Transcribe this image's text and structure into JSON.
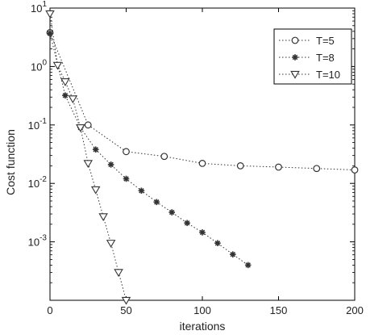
{
  "chart_data": {
    "type": "line",
    "xlabel": "iterations",
    "ylabel": "Cost function",
    "xlim": [
      0,
      200
    ],
    "ylim": [
      0.0001,
      10
    ],
    "yscale": "log",
    "grid": false,
    "legend_position": "top-right",
    "x_ticks": [
      0,
      50,
      100,
      150,
      200
    ],
    "y_ticks": [
      {
        "value": 10,
        "mantissa": "10",
        "exponent": "1"
      },
      {
        "value": 1,
        "mantissa": "10",
        "exponent": "0"
      },
      {
        "value": 0.1,
        "mantissa": "10",
        "exponent": "-1"
      },
      {
        "value": 0.01,
        "mantissa": "10",
        "exponent": "-2"
      },
      {
        "value": 0.001,
        "mantissa": "10",
        "exponent": "-3"
      }
    ],
    "series": [
      {
        "name": "T=5",
        "marker": "circle",
        "color": "#333333",
        "x": [
          0,
          25,
          50,
          75,
          100,
          125,
          150,
          175,
          200
        ],
        "y": [
          3.8,
          0.1,
          0.035,
          0.029,
          0.022,
          0.02,
          0.019,
          0.018,
          0.017
        ]
      },
      {
        "name": "T=8",
        "marker": "star",
        "color": "#333333",
        "x": [
          0,
          10,
          20,
          30,
          40,
          50,
          60,
          70,
          80,
          90,
          100,
          110,
          120,
          130
        ],
        "y": [
          3.7,
          0.32,
          0.09,
          0.038,
          0.021,
          0.012,
          0.0075,
          0.0048,
          0.0032,
          0.0021,
          0.00145,
          0.00095,
          0.00061,
          0.0004
        ]
      },
      {
        "name": "T=10",
        "marker": "triangle-down",
        "color": "#333333",
        "x": [
          0,
          5,
          10,
          15,
          20,
          25,
          30,
          35,
          40,
          45,
          50
        ],
        "y": [
          8,
          1.05,
          0.55,
          0.28,
          0.09,
          0.022,
          0.0078,
          0.0027,
          0.00095,
          0.0003,
          0.0001
        ]
      }
    ]
  }
}
